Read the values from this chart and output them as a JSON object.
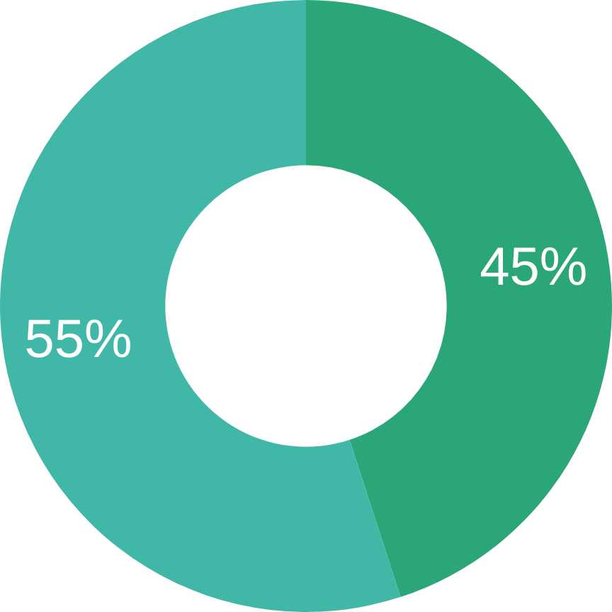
{
  "chart_data": {
    "type": "donut",
    "categories": [
      null,
      null
    ],
    "values": [
      45,
      55
    ],
    "colors": [
      "#2ba678",
      "#41b8a7"
    ],
    "value_labels": [
      "45%",
      "55%"
    ],
    "legend": false
  }
}
